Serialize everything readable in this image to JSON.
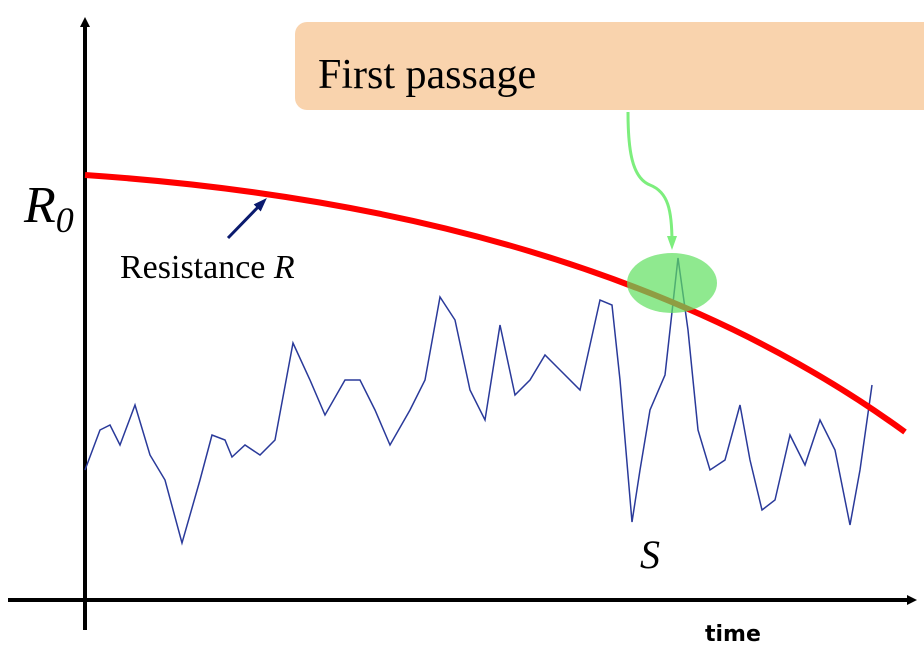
{
  "callout": "First passage",
  "threshold_label": {
    "symbol": "R",
    "subscript": "0"
  },
  "curve_label": {
    "text": "Resistance ",
    "symbol": "R"
  },
  "signal_label": "S",
  "x_axis_label": "time"
}
